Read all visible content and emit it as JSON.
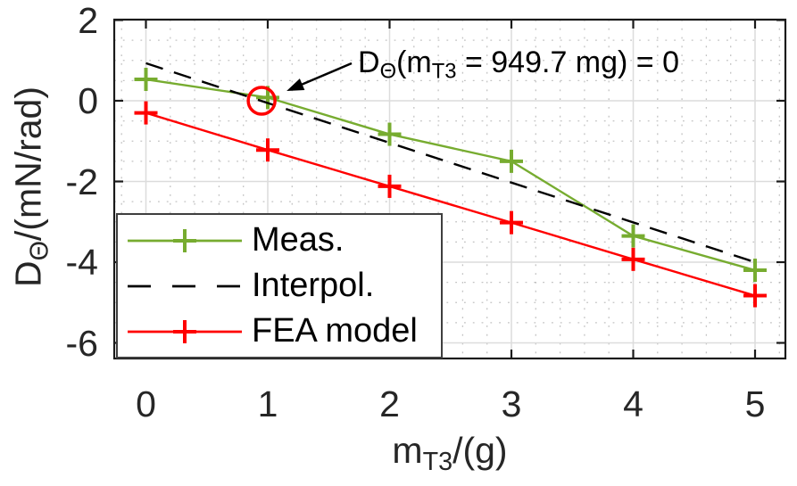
{
  "figure": {
    "background": "#ffffff"
  },
  "axes": {
    "ylabel": {
      "main1": "D",
      "sub1": "Θ",
      "main2": "/(mN/rad)"
    },
    "xlabel": {
      "main1": "m",
      "sub1": "T3",
      "main2": "/(g)"
    }
  },
  "annotation": {
    "main1": "D",
    "sub1": "Θ",
    "main2": "(m",
    "sub2": "T3",
    "main3": " = 949.7 mg) = 0"
  },
  "colors": {
    "grid_major": "#dcdcdc",
    "grid_minor": "#b3b3b3",
    "axis": "#1a1a1a",
    "tick_text": "#262626"
  },
  "chart_data": {
    "type": "line",
    "title": "",
    "xlabel": "m_T3/(g)",
    "ylabel": "D_Θ/(mN/rad)",
    "series": [
      {
        "name": "Meas.",
        "color": "#77ac30",
        "line": "solid",
        "marker": "plus",
        "x": [
          0,
          1,
          2,
          3,
          4,
          5
        ],
        "y": [
          0.53,
          0.08,
          -0.83,
          -1.5,
          -3.35,
          -4.2
        ]
      },
      {
        "name": "Interpol.",
        "color": "#000000",
        "line": "dashed",
        "marker": "none",
        "x": [
          0,
          5
        ],
        "y": [
          0.93,
          -4.0
        ]
      },
      {
        "name": "FEA model",
        "color": "#ff0000",
        "line": "solid",
        "marker": "plus",
        "x": [
          0,
          1,
          2,
          3,
          4,
          5
        ],
        "y": [
          -0.3,
          -1.22,
          -2.12,
          -3.02,
          -3.93,
          -4.83
        ]
      }
    ],
    "xticks": [
      0,
      1,
      2,
      3,
      4,
      5
    ],
    "yticks": [
      2,
      0,
      -2,
      -4,
      -6
    ],
    "xlim": [
      -0.26,
      5.25
    ],
    "ylim": [
      -6.41,
      2
    ],
    "x_minor_step": 0.2,
    "y_minor_step": 0.5,
    "grid": true,
    "minor_grid": true,
    "legend": {
      "position": "lower-left",
      "labels": [
        "Meas.",
        "Interpol.",
        "FEA model"
      ]
    },
    "annotation": {
      "text": "D_Θ(m_T3 = 949.7 mg) = 0",
      "point_x": 0.9497,
      "point_y": 0,
      "marker": "red-circle",
      "marker_color": "#ff0000"
    }
  }
}
